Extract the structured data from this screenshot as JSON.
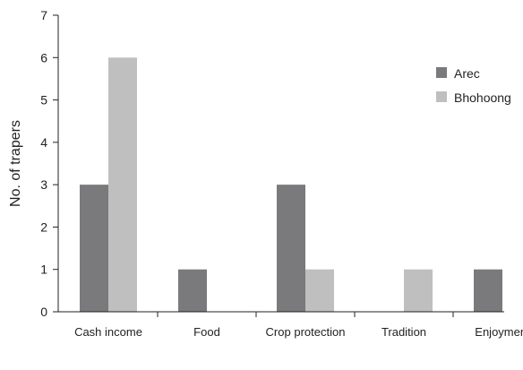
{
  "chart_data": {
    "type": "bar",
    "title": "",
    "xlabel": "",
    "ylabel": "No. of trapers",
    "categories": [
      "Cash income",
      "Food",
      "Crop protection",
      "Tradition",
      "Enjoyment"
    ],
    "series": [
      {
        "name": "Arec",
        "values": [
          3,
          1,
          3,
          0,
          1
        ],
        "color": "#7a7a7c"
      },
      {
        "name": "Bhohoong",
        "values": [
          6,
          0,
          1,
          1,
          0
        ],
        "color": "#bfbfbf"
      }
    ],
    "ylim": [
      0,
      7
    ],
    "yticks": [
      0,
      1,
      2,
      3,
      4,
      5,
      6,
      7
    ],
    "grid": false,
    "legend_position": "top-right"
  }
}
